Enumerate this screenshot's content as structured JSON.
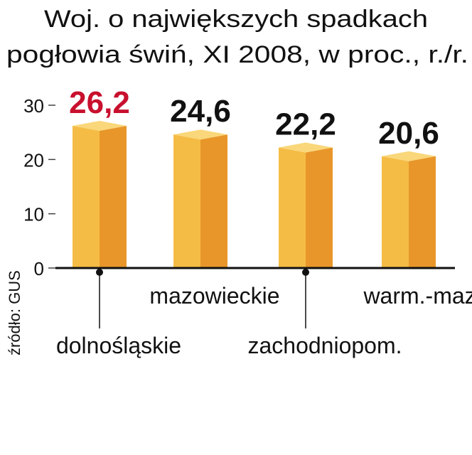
{
  "chart_data": {
    "type": "bar",
    "title": [
      "Woj. o największych spadkach",
      "pogłowia świń, XI 2008, w proc., r./r."
    ],
    "categories": [
      "dolnośląskie",
      "mazowieckie",
      "zachodniopom.",
      "warm.-maz."
    ],
    "values": [
      26.2,
      24.6,
      22.2,
      20.6
    ],
    "value_labels": [
      "26,2",
      "24,6",
      "22,2",
      "20,6"
    ],
    "value_label_colors": [
      "#c8102e",
      "#111111",
      "#111111",
      "#111111"
    ],
    "source": "źródło: GUS",
    "colors": {
      "front": "#f5bc45",
      "side": "#e8962a",
      "top": "#f9d77a"
    },
    "ylim": [
      0,
      30
    ],
    "yticks": [
      0,
      10,
      20,
      30
    ]
  }
}
